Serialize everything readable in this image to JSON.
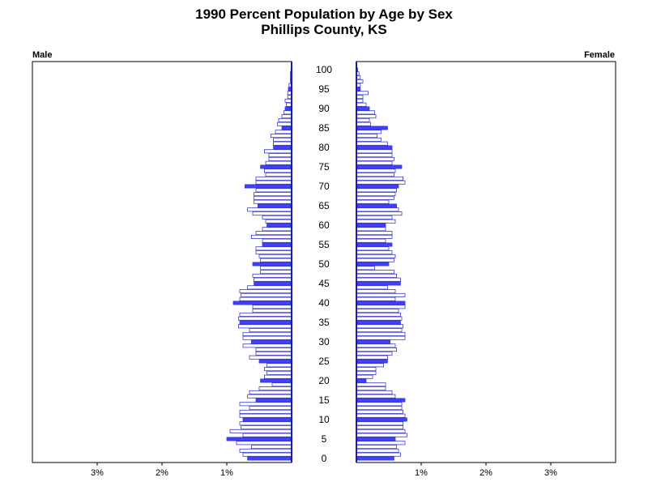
{
  "chart_data": {
    "type": "bar",
    "title": "1990 Percent Population by Age by Sex",
    "subtitle": "Phillips County, KS",
    "left_panel_label": "Male",
    "right_panel_label": "Female",
    "age_tick_labels": [
      "0",
      "5",
      "10",
      "15",
      "20",
      "25",
      "30",
      "35",
      "40",
      "45",
      "50",
      "55",
      "60",
      "65",
      "70",
      "75",
      "80",
      "85",
      "90",
      "95",
      "100"
    ],
    "percent_tick_labels": [
      "3%",
      "2%",
      "1%"
    ],
    "xlim_percent": [
      0,
      4
    ],
    "ages": [
      0,
      1,
      2,
      3,
      4,
      5,
      6,
      7,
      8,
      9,
      10,
      11,
      12,
      13,
      14,
      15,
      16,
      17,
      18,
      19,
      20,
      21,
      22,
      23,
      24,
      25,
      26,
      27,
      28,
      29,
      30,
      31,
      32,
      33,
      34,
      35,
      36,
      37,
      38,
      39,
      40,
      41,
      42,
      43,
      44,
      45,
      46,
      47,
      48,
      49,
      50,
      51,
      52,
      53,
      54,
      55,
      56,
      57,
      58,
      59,
      60,
      61,
      62,
      63,
      64,
      65,
      66,
      67,
      68,
      69,
      70,
      71,
      72,
      73,
      74,
      75,
      76,
      77,
      78,
      79,
      80,
      81,
      82,
      83,
      84,
      85,
      86,
      87,
      88,
      89,
      90,
      91,
      92,
      93,
      94,
      95,
      96,
      97,
      98,
      99,
      100
    ],
    "highlight_every": 5,
    "series": [
      {
        "name": "Male",
        "values": [
          0.68,
          0.75,
          0.8,
          0.62,
          0.85,
          1.0,
          0.75,
          0.95,
          0.78,
          0.8,
          0.75,
          0.8,
          0.8,
          0.65,
          0.8,
          0.55,
          0.68,
          0.65,
          0.5,
          0.3,
          0.48,
          0.42,
          0.38,
          0.42,
          0.38,
          0.5,
          0.65,
          0.55,
          0.55,
          0.75,
          0.62,
          0.75,
          0.75,
          0.65,
          0.82,
          0.8,
          0.82,
          0.8,
          0.6,
          0.6,
          0.9,
          0.8,
          0.78,
          0.8,
          0.68,
          0.58,
          0.58,
          0.6,
          0.48,
          0.48,
          0.6,
          0.48,
          0.5,
          0.55,
          0.55,
          0.45,
          0.45,
          0.62,
          0.55,
          0.45,
          0.38,
          0.4,
          0.45,
          0.6,
          0.68,
          0.52,
          0.58,
          0.58,
          0.58,
          0.55,
          0.72,
          0.55,
          0.55,
          0.4,
          0.42,
          0.48,
          0.4,
          0.35,
          0.35,
          0.42,
          0.28,
          0.28,
          0.28,
          0.32,
          0.25,
          0.15,
          0.22,
          0.2,
          0.15,
          0.12,
          0.1,
          0.08,
          0.1,
          0.06,
          0.06,
          0.05,
          0.04,
          0.02,
          0.02,
          0.02,
          0.01
        ],
        "fill": "#ffffff",
        "highlight_fill": "#3f3fff",
        "stroke": "#3a3acc"
      },
      {
        "name": "Female",
        "values": [
          0.58,
          0.68,
          0.65,
          0.62,
          0.75,
          0.6,
          0.78,
          0.75,
          0.72,
          0.72,
          0.78,
          0.75,
          0.72,
          0.7,
          0.7,
          0.75,
          0.6,
          0.55,
          0.45,
          0.45,
          0.15,
          0.25,
          0.3,
          0.3,
          0.42,
          0.48,
          0.48,
          0.55,
          0.62,
          0.6,
          0.52,
          0.75,
          0.75,
          0.7,
          0.72,
          0.68,
          0.7,
          0.68,
          0.65,
          0.75,
          0.75,
          0.6,
          0.75,
          0.6,
          0.48,
          0.68,
          0.68,
          0.62,
          0.58,
          0.28,
          0.5,
          0.58,
          0.6,
          0.55,
          0.5,
          0.55,
          0.45,
          0.55,
          0.55,
          0.45,
          0.45,
          0.6,
          0.55,
          0.7,
          0.65,
          0.62,
          0.5,
          0.58,
          0.6,
          0.62,
          0.65,
          0.75,
          0.72,
          0.58,
          0.6,
          0.7,
          0.55,
          0.58,
          0.55,
          0.55,
          0.55,
          0.48,
          0.38,
          0.32,
          0.38,
          0.48,
          0.22,
          0.2,
          0.3,
          0.28,
          0.2,
          0.15,
          0.1,
          0.1,
          0.18,
          0.06,
          0.06,
          0.1,
          0.06,
          0.04,
          0.02
        ],
        "fill": "#ffffff",
        "highlight_fill": "#3f3fff",
        "stroke": "#3a3acc"
      }
    ]
  }
}
